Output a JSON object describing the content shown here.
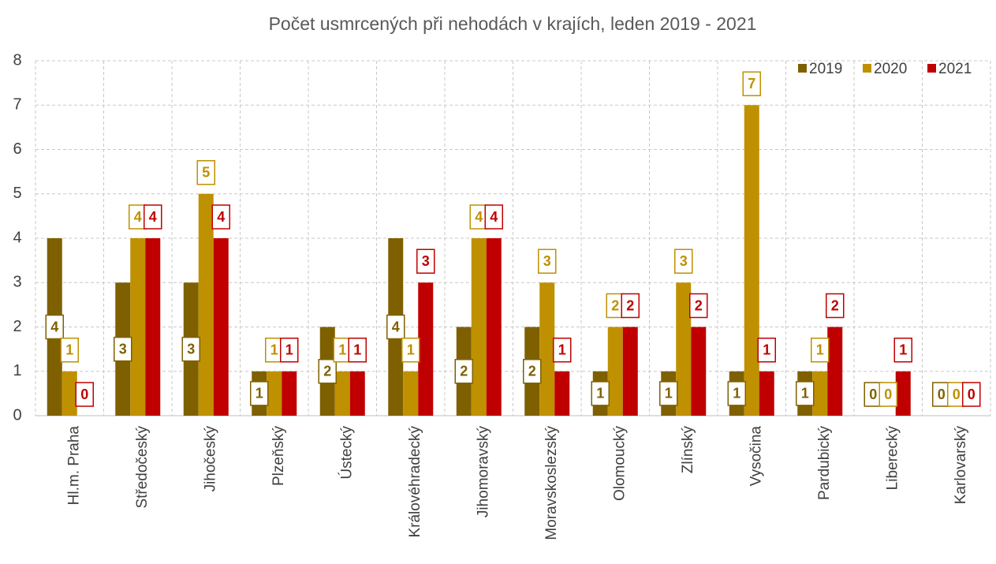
{
  "chart_data": {
    "type": "bar",
    "title": "Počet usmrcených při nehodách v krajích, leden 2019 - 2021",
    "categories": [
      "Hl.m. Praha",
      "Středočeský",
      "Jihočeský",
      "Plzeňský",
      "Ústecký",
      "Královéhradecký",
      "Jihomoravský",
      "Moravskoslezský",
      "Olomoucký",
      "Zlínský",
      "Vysočina",
      "Pardubický",
      "Liberecký",
      "Karlovarský"
    ],
    "series": [
      {
        "name": "2019",
        "color": "#7f6000",
        "values": [
          4,
          3,
          3,
          1,
          2,
          4,
          2,
          2,
          1,
          1,
          1,
          1,
          0,
          0
        ]
      },
      {
        "name": "2020",
        "color": "#bf9000",
        "values": [
          1,
          4,
          5,
          1,
          1,
          1,
          4,
          3,
          2,
          3,
          7,
          1,
          0,
          0
        ]
      },
      {
        "name": "2021",
        "color": "#c00000",
        "values": [
          0,
          4,
          4,
          1,
          1,
          3,
          4,
          1,
          2,
          2,
          1,
          2,
          1,
          0
        ]
      }
    ],
    "ylim": [
      0,
      8
    ],
    "yticks": [
      0,
      1,
      2,
      3,
      4,
      5,
      6,
      7,
      8
    ],
    "grid": true,
    "legend": "top-right"
  }
}
